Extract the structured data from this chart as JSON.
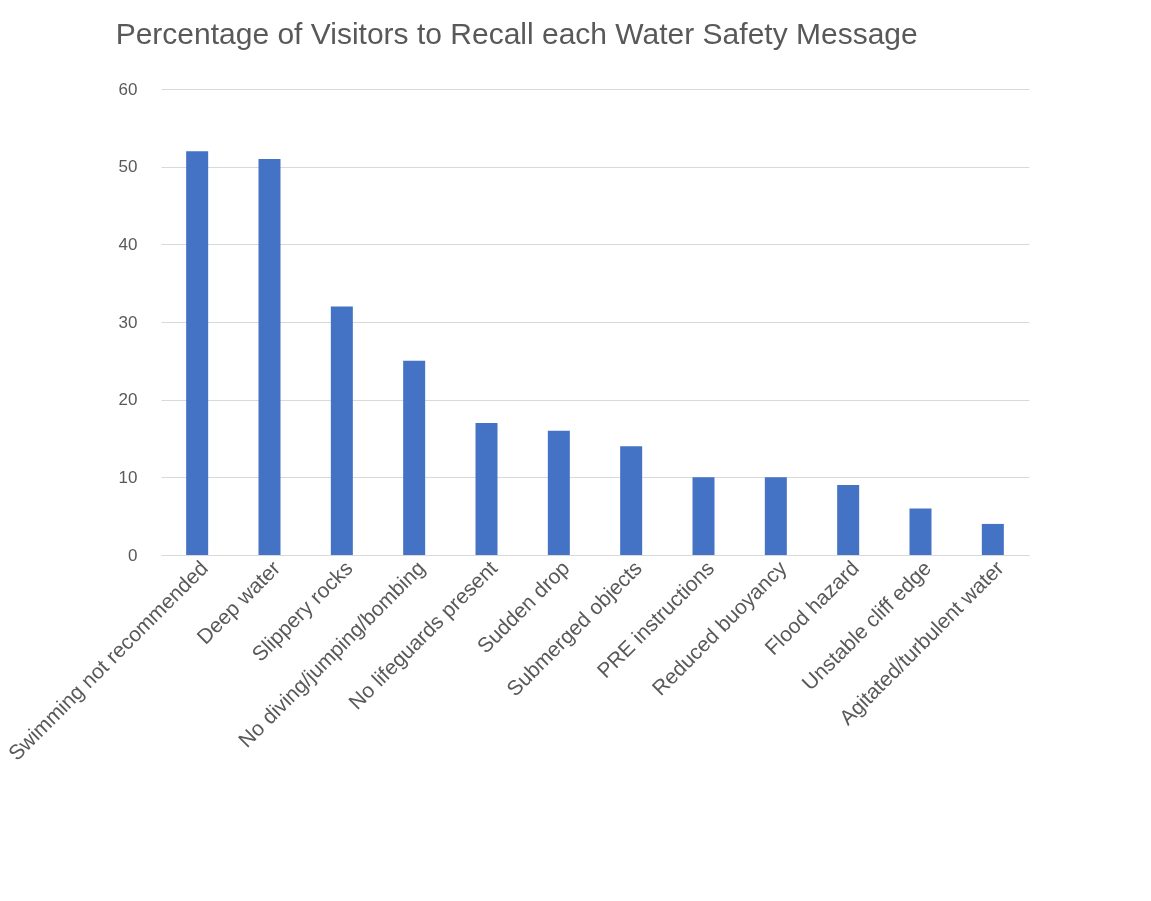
{
  "chart_data": {
    "type": "bar",
    "title": "Percentage of Visitors to Recall each Water Safety Message",
    "categories": [
      "Swimming not recommended",
      "Deep water",
      "Slippery rocks",
      "No diving/jumping/bombing",
      "No lifeguards present",
      "Sudden drop",
      "Submerged objects",
      "PRE instructions",
      "Reduced buoyancy",
      "Flood hazard",
      "Unstable cliff edge",
      "Agitated/turbulent water"
    ],
    "values": [
      52,
      51,
      32,
      25,
      17,
      16,
      14,
      10,
      10,
      9,
      6,
      4
    ],
    "color": "#4472c4",
    "ylim": [
      0,
      60
    ],
    "yticks": [
      0,
      10,
      20,
      30,
      40,
      50,
      60
    ],
    "grid": "y"
  }
}
